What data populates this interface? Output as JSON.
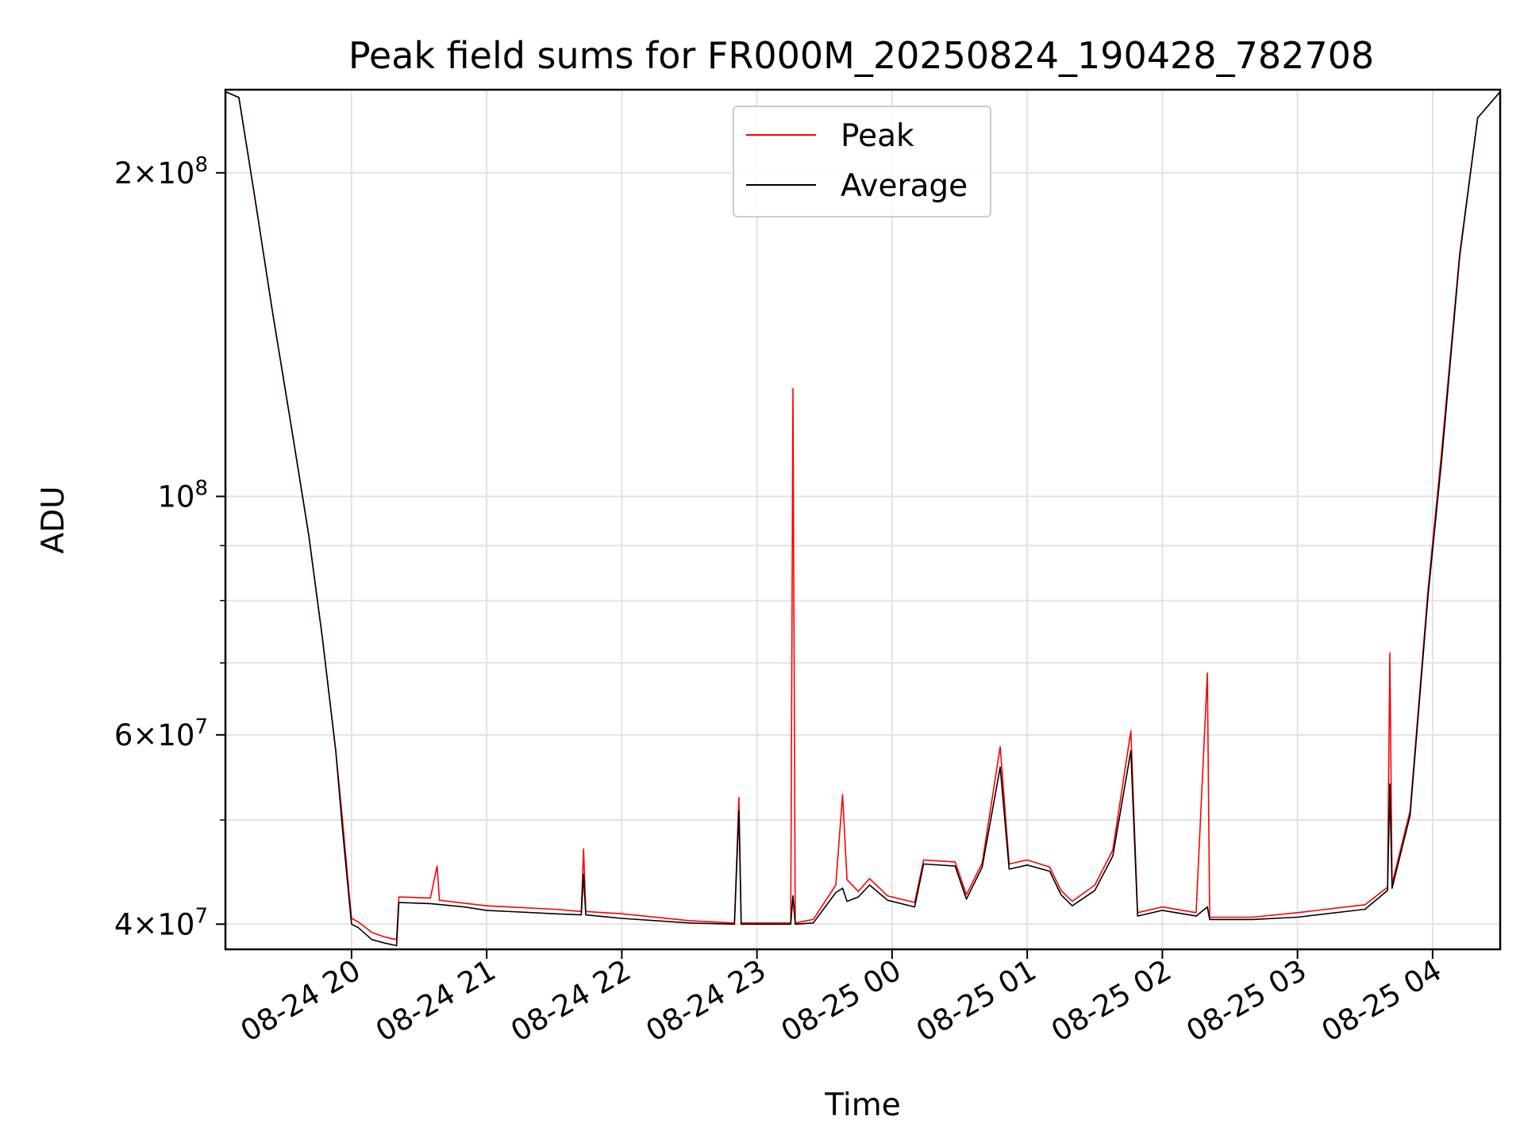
{
  "chart_data": {
    "type": "line",
    "title": "Peak field sums for FR000M_20250824_190428_782708",
    "xlabel": "Time",
    "ylabel": "ADU",
    "yscale": "log",
    "grid": true,
    "legend_position": "top-center",
    "x_unit": "hour",
    "x_start": "2025-08-24 19:04",
    "xlim": [
      "2025-08-24 19:04",
      "2025-08-25 04:30"
    ],
    "ylim": [
      37900000,
      239000000
    ],
    "x_ticks": [
      {
        "value": "2025-08-24 20:00",
        "label": "08-24 20"
      },
      {
        "value": "2025-08-24 21:00",
        "label": "08-24 21"
      },
      {
        "value": "2025-08-24 22:00",
        "label": "08-24 22"
      },
      {
        "value": "2025-08-24 23:00",
        "label": "08-24 23"
      },
      {
        "value": "2025-08-25 00:00",
        "label": "08-25 00"
      },
      {
        "value": "2025-08-25 01:00",
        "label": "08-25 01"
      },
      {
        "value": "2025-08-25 02:00",
        "label": "08-25 02"
      },
      {
        "value": "2025-08-25 03:00",
        "label": "08-25 03"
      },
      {
        "value": "2025-08-25 04:00",
        "label": "08-25 04"
      }
    ],
    "y_major_ticks": [
      {
        "value": 40000000,
        "mantissa": "4",
        "exp": "7"
      },
      {
        "value": 60000000,
        "mantissa": "6",
        "exp": "7"
      },
      {
        "value": 100000000,
        "mantissa": "",
        "exp": "8"
      },
      {
        "value": 200000000,
        "mantissa": "2",
        "exp": "8"
      }
    ],
    "y_minor_ticks": [
      50000000,
      70000000,
      80000000,
      90000000
    ],
    "series": [
      {
        "name": "Peak",
        "color": "#ff0000",
        "points": [
          [
            "2025-08-24 19:04",
            238000000
          ],
          [
            "2025-08-24 19:10",
            235000000
          ],
          [
            "2025-08-24 19:17",
            190000000
          ],
          [
            "2025-08-24 19:25",
            148000000
          ],
          [
            "2025-08-24 19:33",
            117000000
          ],
          [
            "2025-08-24 19:41",
            92000000
          ],
          [
            "2025-08-24 19:47",
            74000000
          ],
          [
            "2025-08-24 19:53",
            58000000
          ],
          [
            "2025-08-24 19:56",
            50000000
          ],
          [
            "2025-08-24 19:59",
            42500000
          ],
          [
            "2025-08-24 20:00",
            40500000
          ],
          [
            "2025-08-24 20:03",
            40200000
          ],
          [
            "2025-08-24 20:09",
            39300000
          ],
          [
            "2025-08-24 20:15",
            38900000
          ],
          [
            "2025-08-24 20:20",
            38700000
          ],
          [
            "2025-08-24 20:21",
            42400000
          ],
          [
            "2025-08-24 20:35",
            42300000
          ],
          [
            "2025-08-24 20:38",
            45300000
          ],
          [
            "2025-08-24 20:39",
            42100000
          ],
          [
            "2025-08-24 21:00",
            41600000
          ],
          [
            "2025-08-24 21:30",
            41300000
          ],
          [
            "2025-08-24 21:42",
            41100000
          ],
          [
            "2025-08-24 21:43",
            47000000
          ],
          [
            "2025-08-24 21:44",
            41100000
          ],
          [
            "2025-08-24 22:00",
            40900000
          ],
          [
            "2025-08-24 22:30",
            40300000
          ],
          [
            "2025-08-24 22:50",
            40100000
          ],
          [
            "2025-08-24 22:52",
            52500000
          ],
          [
            "2025-08-24 22:53",
            40100000
          ],
          [
            "2025-08-24 23:15",
            40100000
          ],
          [
            "2025-08-24 23:16",
            126000000
          ],
          [
            "2025-08-24 23:17",
            40100000
          ],
          [
            "2025-08-24 23:25",
            40400000
          ],
          [
            "2025-08-24 23:35",
            43500000
          ],
          [
            "2025-08-24 23:38",
            52800000
          ],
          [
            "2025-08-24 23:40",
            44000000
          ],
          [
            "2025-08-24 23:45",
            42900000
          ],
          [
            "2025-08-24 23:50",
            44100000
          ],
          [
            "2025-08-24 23:58",
            42500000
          ],
          [
            "2025-08-25 00:10",
            41900000
          ],
          [
            "2025-08-25 00:14",
            45900000
          ],
          [
            "2025-08-25 00:28",
            45700000
          ],
          [
            "2025-08-25 00:33",
            42600000
          ],
          [
            "2025-08-25 00:40",
            45600000
          ],
          [
            "2025-08-25 00:48",
            58500000
          ],
          [
            "2025-08-25 00:52",
            45500000
          ],
          [
            "2025-08-25 01:00",
            45900000
          ],
          [
            "2025-08-25 01:10",
            45200000
          ],
          [
            "2025-08-25 01:15",
            43000000
          ],
          [
            "2025-08-25 01:20",
            42000000
          ],
          [
            "2025-08-25 01:30",
            43500000
          ],
          [
            "2025-08-25 01:38",
            46900000
          ],
          [
            "2025-08-25 01:46",
            60500000
          ],
          [
            "2025-08-25 01:49",
            41000000
          ],
          [
            "2025-08-25 02:00",
            41500000
          ],
          [
            "2025-08-25 02:15",
            41000000
          ],
          [
            "2025-08-25 02:20",
            68500000
          ],
          [
            "2025-08-25 02:21",
            40600000
          ],
          [
            "2025-08-25 02:40",
            40600000
          ],
          [
            "2025-08-25 03:00",
            41000000
          ],
          [
            "2025-08-25 03:30",
            41700000
          ],
          [
            "2025-08-25 03:40",
            43300000
          ],
          [
            "2025-08-25 03:41",
            71500000
          ],
          [
            "2025-08-25 03:42",
            43600000
          ],
          [
            "2025-08-25 03:50",
            51000000
          ],
          [
            "2025-08-25 03:58",
            82000000
          ],
          [
            "2025-08-25 04:04",
            110000000
          ],
          [
            "2025-08-25 04:12",
            168000000
          ],
          [
            "2025-08-25 04:20",
            225000000
          ],
          [
            "2025-08-25 04:30",
            238000000
          ]
        ]
      },
      {
        "name": "Average",
        "color": "#000000",
        "points": [
          [
            "2025-08-24 19:04",
            238000000
          ],
          [
            "2025-08-24 19:10",
            235000000
          ],
          [
            "2025-08-24 19:17",
            190000000
          ],
          [
            "2025-08-24 19:25",
            148000000
          ],
          [
            "2025-08-24 19:33",
            117000000
          ],
          [
            "2025-08-24 19:41",
            92000000
          ],
          [
            "2025-08-24 19:47",
            74000000
          ],
          [
            "2025-08-24 19:53",
            58000000
          ],
          [
            "2025-08-24 19:56",
            49000000
          ],
          [
            "2025-08-24 19:59",
            42000000
          ],
          [
            "2025-08-24 20:00",
            40000000
          ],
          [
            "2025-08-24 20:03",
            39700000
          ],
          [
            "2025-08-24 20:09",
            38700000
          ],
          [
            "2025-08-24 20:15",
            38400000
          ],
          [
            "2025-08-24 20:20",
            38200000
          ],
          [
            "2025-08-24 20:21",
            41900000
          ],
          [
            "2025-08-24 20:35",
            41800000
          ],
          [
            "2025-08-24 20:50",
            41500000
          ],
          [
            "2025-08-24 21:00",
            41200000
          ],
          [
            "2025-08-24 21:30",
            40900000
          ],
          [
            "2025-08-24 21:42",
            40800000
          ],
          [
            "2025-08-24 21:43",
            44500000
          ],
          [
            "2025-08-24 21:44",
            40800000
          ],
          [
            "2025-08-24 22:00",
            40500000
          ],
          [
            "2025-08-24 22:30",
            40100000
          ],
          [
            "2025-08-24 22:50",
            40000000
          ],
          [
            "2025-08-24 22:52",
            51000000
          ],
          [
            "2025-08-24 22:53",
            40000000
          ],
          [
            "2025-08-24 23:15",
            40000000
          ],
          [
            "2025-08-24 23:16",
            42500000
          ],
          [
            "2025-08-24 23:17",
            40000000
          ],
          [
            "2025-08-24 23:25",
            40100000
          ],
          [
            "2025-08-24 23:35",
            42800000
          ],
          [
            "2025-08-24 23:38",
            43200000
          ],
          [
            "2025-08-24 23:40",
            42000000
          ],
          [
            "2025-08-24 23:45",
            42400000
          ],
          [
            "2025-08-24 23:50",
            43500000
          ],
          [
            "2025-08-24 23:58",
            42100000
          ],
          [
            "2025-08-25 00:10",
            41500000
          ],
          [
            "2025-08-25 00:14",
            45500000
          ],
          [
            "2025-08-25 00:28",
            45300000
          ],
          [
            "2025-08-25 00:33",
            42200000
          ],
          [
            "2025-08-25 00:40",
            45200000
          ],
          [
            "2025-08-25 00:48",
            56000000
          ],
          [
            "2025-08-25 00:52",
            45000000
          ],
          [
            "2025-08-25 01:00",
            45400000
          ],
          [
            "2025-08-25 01:10",
            44800000
          ],
          [
            "2025-08-25 01:15",
            42600000
          ],
          [
            "2025-08-25 01:20",
            41600000
          ],
          [
            "2025-08-25 01:30",
            43000000
          ],
          [
            "2025-08-25 01:38",
            46300000
          ],
          [
            "2025-08-25 01:46",
            58000000
          ],
          [
            "2025-08-25 01:49",
            40700000
          ],
          [
            "2025-08-25 02:00",
            41200000
          ],
          [
            "2025-08-25 02:15",
            40700000
          ],
          [
            "2025-08-25 02:20",
            41500000
          ],
          [
            "2025-08-25 02:21",
            40400000
          ],
          [
            "2025-08-25 02:40",
            40400000
          ],
          [
            "2025-08-25 03:00",
            40600000
          ],
          [
            "2025-08-25 03:30",
            41300000
          ],
          [
            "2025-08-25 03:40",
            43000000
          ],
          [
            "2025-08-25 03:41",
            54000000
          ],
          [
            "2025-08-25 03:42",
            43200000
          ],
          [
            "2025-08-25 03:50",
            50500000
          ],
          [
            "2025-08-25 03:58",
            81000000
          ],
          [
            "2025-08-25 04:04",
            108000000
          ],
          [
            "2025-08-25 04:12",
            167000000
          ],
          [
            "2025-08-25 04:20",
            225000000
          ],
          [
            "2025-08-25 04:30",
            238000000
          ]
        ]
      }
    ]
  }
}
